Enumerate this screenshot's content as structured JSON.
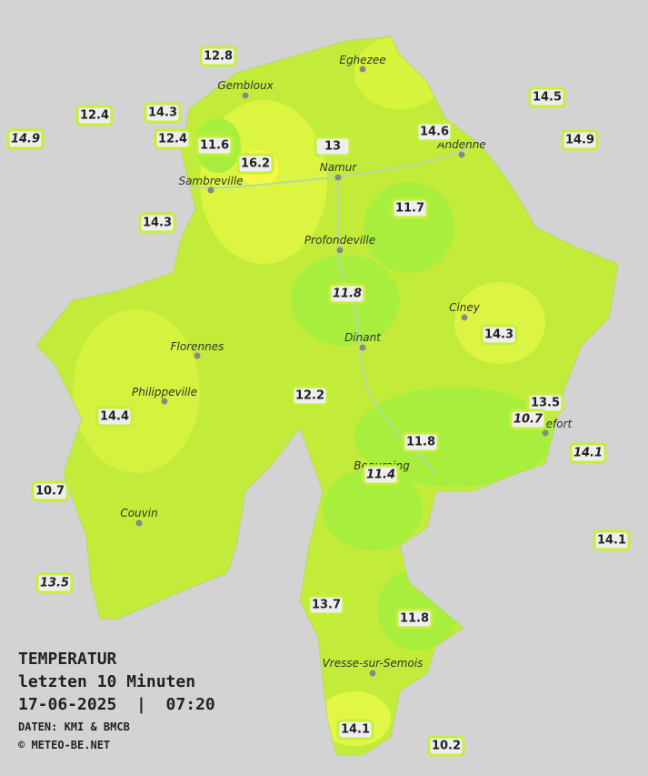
{
  "title": {
    "heading": "TEMPERATUR",
    "period": "letzten 10 Minuten",
    "datetime": "17-06-2025  |  07:20",
    "source": "DATEN: KMI & BMCB",
    "copyright": "© METEO-BE.NET"
  },
  "cities": [
    "Eghezee",
    "Gembloux",
    "Sambreville",
    "Namur",
    "Andenne",
    "Profondeville",
    "Ciney",
    "Florennes",
    "Dinant",
    "Philippeville",
    "Rochefort",
    "Beauraing",
    "Couvin",
    "Vresse-sur-Semois"
  ],
  "stations": [
    12.8,
    12.4,
    14.3,
    14.9,
    12.4,
    11.6,
    16.2,
    13.0,
    14.6,
    14.5,
    14.9,
    14.3,
    11.7,
    11.8,
    14.3,
    12.2,
    13.5,
    10.7,
    14.4,
    11.8,
    14.1,
    11.4,
    10.7,
    14.1,
    13.5,
    13.7,
    11.8,
    14.1,
    10.2
  ]
}
